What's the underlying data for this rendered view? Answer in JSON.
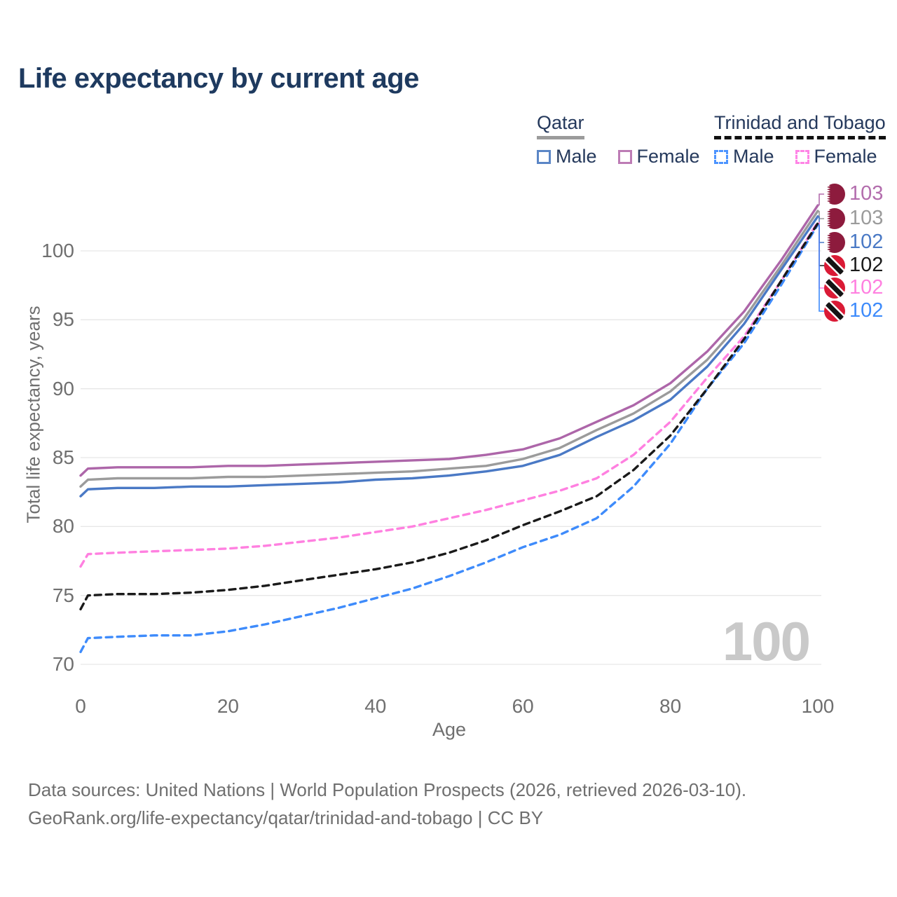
{
  "title": "Life expectancy by current age",
  "legend": {
    "groups": [
      {
        "label": "Qatar",
        "items": [
          {
            "label": "Male"
          },
          {
            "label": "Female"
          }
        ]
      },
      {
        "label": "Trinidad and Tobago",
        "items": [
          {
            "label": "Male"
          },
          {
            "label": "Female"
          }
        ]
      }
    ]
  },
  "y_axis": {
    "title": "Total life expectancy, years",
    "ticks": [
      70,
      75,
      80,
      85,
      90,
      95,
      100
    ]
  },
  "x_axis": {
    "title": "Age",
    "ticks": [
      0,
      20,
      40,
      60,
      80,
      100
    ]
  },
  "watermark": "100",
  "footer": {
    "line1": "Data sources: United Nations | World Population Prospects (2026, retrieved 2026-03-10).",
    "line2": "GeoRank.org/life-expectancy/qatar/trinidad-and-tobago | CC BY"
  },
  "end_labels": [
    {
      "value": "103",
      "flag": "qatar",
      "color": "#b36dad"
    },
    {
      "value": "103",
      "flag": "qatar",
      "color": "#9b9b9b"
    },
    {
      "value": "102",
      "flag": "qatar",
      "color": "#4a79c5"
    },
    {
      "value": "102",
      "flag": "trinidad",
      "color": "#1a1a1a"
    },
    {
      "value": "102",
      "flag": "trinidad",
      "color": "#ff80e0"
    },
    {
      "value": "102",
      "flag": "trinidad",
      "color": "#3e8bfb"
    }
  ],
  "colors": {
    "grid": "#e7e7e7",
    "title_text": "#1e3a5f",
    "axis_text": "#6f6f6f",
    "watermark": "#c9c9c9"
  },
  "chart_data": {
    "type": "line",
    "xlabel": "Age",
    "ylabel": "Total life expectancy, years",
    "xlim": [
      0,
      100
    ],
    "ylim": [
      70,
      103.5
    ],
    "grid": "horizontal",
    "x": [
      0,
      1,
      5,
      10,
      15,
      20,
      25,
      30,
      35,
      40,
      45,
      50,
      55,
      60,
      65,
      70,
      75,
      80,
      85,
      90,
      95,
      100
    ],
    "series": [
      {
        "name": "Qatar Female",
        "style": "solid",
        "color": "#ad66a9",
        "values": [
          83.7,
          84.2,
          84.3,
          84.3,
          84.3,
          84.4,
          84.4,
          84.5,
          84.6,
          84.7,
          84.8,
          84.9,
          85.2,
          85.6,
          86.4,
          87.6,
          88.8,
          90.4,
          92.7,
          95.6,
          99.3,
          103.3
        ]
      },
      {
        "name": "Qatar Both sexes",
        "style": "solid",
        "color": "#9b9b9b",
        "values": [
          82.9,
          83.4,
          83.5,
          83.5,
          83.5,
          83.6,
          83.6,
          83.7,
          83.8,
          83.9,
          84.0,
          84.2,
          84.4,
          84.9,
          85.7,
          87.0,
          88.2,
          89.8,
          92.1,
          95.1,
          98.9,
          102.9
        ]
      },
      {
        "name": "Qatar Male",
        "style": "solid",
        "color": "#4a79c5",
        "values": [
          82.2,
          82.7,
          82.8,
          82.8,
          82.9,
          82.9,
          83.0,
          83.1,
          83.2,
          83.4,
          83.5,
          83.7,
          84.0,
          84.4,
          85.2,
          86.5,
          87.7,
          89.2,
          91.6,
          94.7,
          98.6,
          102.5
        ]
      },
      {
        "name": "Trinidad and Tobago Male",
        "style": "dashed",
        "color": "#3e8bfb",
        "values": [
          70.9,
          71.9,
          72.0,
          72.1,
          72.1,
          72.4,
          72.9,
          73.5,
          74.1,
          74.8,
          75.5,
          76.4,
          77.4,
          78.5,
          79.4,
          80.6,
          82.9,
          86.0,
          90.0,
          93.3,
          97.5,
          101.9
        ]
      },
      {
        "name": "Trinidad and Tobago Female",
        "style": "dashed",
        "color": "#ff80e0",
        "values": [
          77.1,
          78.0,
          78.1,
          78.2,
          78.3,
          78.4,
          78.6,
          78.9,
          79.2,
          79.6,
          80.0,
          80.6,
          81.2,
          81.9,
          82.6,
          83.5,
          85.2,
          87.6,
          90.8,
          93.8,
          97.8,
          102.1
        ]
      },
      {
        "name": "Trinidad and Tobago Both sexes",
        "style": "dashed",
        "color": "#1a1a1a",
        "values": [
          74.0,
          75.0,
          75.1,
          75.1,
          75.2,
          75.4,
          75.7,
          76.1,
          76.5,
          76.9,
          77.4,
          78.1,
          79.0,
          80.1,
          81.1,
          82.2,
          84.1,
          86.6,
          90.0,
          93.6,
          97.8,
          102.0
        ]
      }
    ]
  }
}
